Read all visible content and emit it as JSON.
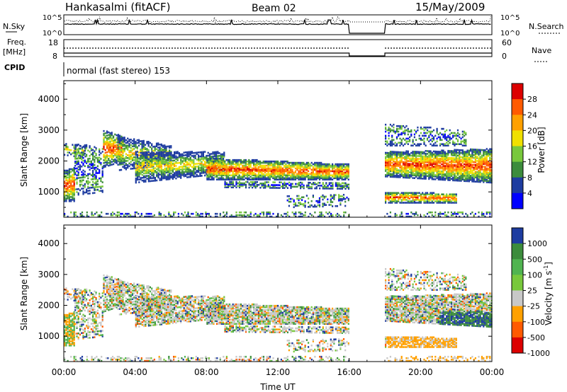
{
  "header": {
    "station": "Hankasalmi (fitACF)",
    "beam": "Beam 02",
    "date": "15/May/2009"
  },
  "top_panels": {
    "nsky_label": "N.Sky",
    "nsky_ticks": [
      "10^5",
      "10^0"
    ],
    "nsearch_label": "N.Search",
    "nsearch_ticks": [
      "10^5",
      "10^0"
    ],
    "freq_label": "Freq.",
    "freq_unit": "[MHz]",
    "freq_ticks": [
      "18",
      "8"
    ],
    "nave_label": "Nave",
    "nave_ticks": [
      "60",
      "0"
    ],
    "cpid_label": "CPID",
    "cpid_text": "normal (fast stereo) 153"
  },
  "chart_data": [
    {
      "type": "heatmap",
      "name": "power",
      "xlabel": "Time UT",
      "ylabel": "Slant Range [km]",
      "x_ticks": [
        "00:00",
        "04:00",
        "08:00",
        "12:00",
        "16:00",
        "20:00",
        "00:00"
      ],
      "y_ticks": [
        "1000",
        "2000",
        "3000",
        "4000"
      ],
      "ylim": [
        180,
        4600
      ],
      "colorbar": {
        "label": "Power [dB]",
        "ticks": [
          "28",
          "24",
          "20",
          "16",
          "12",
          "8",
          "4"
        ],
        "colors": [
          "#dc0000",
          "#ff5a00",
          "#ffa000",
          "#f0e000",
          "#78c83c",
          "#3c8c3c",
          "#1e3ca0",
          "#0000ff"
        ]
      },
      "data_gap_hours": [
        16.0,
        18.0
      ]
    },
    {
      "type": "heatmap",
      "name": "velocity",
      "xlabel": "Time UT",
      "ylabel": "Slant Range [km]",
      "x_ticks": [
        "00:00",
        "04:00",
        "08:00",
        "12:00",
        "16:00",
        "20:00",
        "00:00"
      ],
      "y_ticks": [
        "1000",
        "2000",
        "3000",
        "4000"
      ],
      "ylim": [
        180,
        4600
      ],
      "colorbar": {
        "label": "Velocity [m s^-1]",
        "ticks": [
          "1000",
          "500",
          "100",
          "25",
          "-25",
          "-100",
          "-500",
          "-1000"
        ],
        "colors": [
          "#1e3ca0",
          "#3c8c3c",
          "#50b450",
          "#78c83c",
          "#c8c8c8",
          "#ffa000",
          "#ff5a00",
          "#dc0000"
        ]
      },
      "data_gap_hours": [
        16.0,
        18.0
      ]
    }
  ]
}
